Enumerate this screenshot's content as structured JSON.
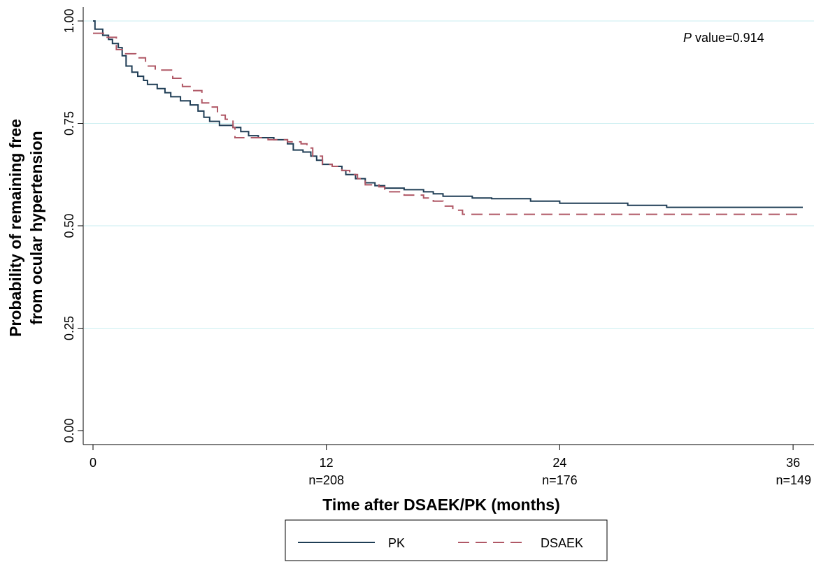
{
  "chart_data": {
    "type": "line",
    "title": "",
    "xlabel": "Time after DSAEK/PK (months)",
    "ylabel_line1": "Probability of remaining free",
    "ylabel_line2": "from ocular hypertension",
    "xlim": [
      0,
      36.5
    ],
    "ylim": [
      0,
      1
    ],
    "x_ticks": [
      0,
      12,
      24,
      36
    ],
    "x_tick_labels": [
      "0",
      "12",
      "24",
      "36"
    ],
    "at_risk_labels": [
      "",
      "n=208",
      "n=176",
      "n=149"
    ],
    "y_ticks": [
      0,
      0.25,
      0.5,
      0.75,
      1.0
    ],
    "y_tick_labels": [
      "0.00",
      "0.25",
      "0.50",
      "0.75",
      "1.00"
    ],
    "grid": "horizontal",
    "annotation": {
      "italic": "P",
      "rest": " value=0.914"
    },
    "legend_position": "bottom",
    "series": [
      {
        "name": "PK",
        "color": "#1f3d55",
        "dash": "solid",
        "points": [
          [
            0,
            1.0
          ],
          [
            0.1,
            0.98
          ],
          [
            0.5,
            0.965
          ],
          [
            0.8,
            0.955
          ],
          [
            1.0,
            0.945
          ],
          [
            1.3,
            0.935
          ],
          [
            1.5,
            0.915
          ],
          [
            1.7,
            0.89
          ],
          [
            2.0,
            0.875
          ],
          [
            2.3,
            0.865
          ],
          [
            2.6,
            0.855
          ],
          [
            2.8,
            0.845
          ],
          [
            3.3,
            0.835
          ],
          [
            3.7,
            0.825
          ],
          [
            4.0,
            0.815
          ],
          [
            4.5,
            0.805
          ],
          [
            5.0,
            0.795
          ],
          [
            5.4,
            0.78
          ],
          [
            5.7,
            0.765
          ],
          [
            6.0,
            0.755
          ],
          [
            6.5,
            0.745
          ],
          [
            7.2,
            0.74
          ],
          [
            7.6,
            0.73
          ],
          [
            8.0,
            0.72
          ],
          [
            8.5,
            0.715
          ],
          [
            9.3,
            0.71
          ],
          [
            10.0,
            0.7
          ],
          [
            10.3,
            0.685
          ],
          [
            10.8,
            0.68
          ],
          [
            11.2,
            0.67
          ],
          [
            11.5,
            0.66
          ],
          [
            11.8,
            0.65
          ],
          [
            12.3,
            0.645
          ],
          [
            12.8,
            0.635
          ],
          [
            13.0,
            0.625
          ],
          [
            13.5,
            0.615
          ],
          [
            14.0,
            0.605
          ],
          [
            14.5,
            0.598
          ],
          [
            15.0,
            0.592
          ],
          [
            16.0,
            0.588
          ],
          [
            17.0,
            0.583
          ],
          [
            17.5,
            0.578
          ],
          [
            18.0,
            0.572
          ],
          [
            19.5,
            0.568
          ],
          [
            20.5,
            0.566
          ],
          [
            22.5,
            0.56
          ],
          [
            24.0,
            0.555
          ],
          [
            27.5,
            0.55
          ],
          [
            29.5,
            0.545
          ],
          [
            36.5,
            0.545
          ]
        ]
      },
      {
        "name": "DSAEK",
        "color": "#b05866",
        "dash": "dashed",
        "points": [
          [
            0,
            0.97
          ],
          [
            0.6,
            0.96
          ],
          [
            1.2,
            0.93
          ],
          [
            1.5,
            0.92
          ],
          [
            2.2,
            0.91
          ],
          [
            2.7,
            0.89
          ],
          [
            3.2,
            0.88
          ],
          [
            4.1,
            0.86
          ],
          [
            4.6,
            0.84
          ],
          [
            5.1,
            0.83
          ],
          [
            5.6,
            0.8
          ],
          [
            6.0,
            0.79
          ],
          [
            6.4,
            0.77
          ],
          [
            6.8,
            0.76
          ],
          [
            7.2,
            0.74
          ],
          [
            7.3,
            0.715
          ],
          [
            8.8,
            0.715
          ],
          [
            9.0,
            0.71
          ],
          [
            10.0,
            0.705
          ],
          [
            10.7,
            0.7
          ],
          [
            11.0,
            0.69
          ],
          [
            11.3,
            0.67
          ],
          [
            11.8,
            0.65
          ],
          [
            12.3,
            0.645
          ],
          [
            12.8,
            0.635
          ],
          [
            13.2,
            0.625
          ],
          [
            13.6,
            0.615
          ],
          [
            14.0,
            0.6
          ],
          [
            14.7,
            0.595
          ],
          [
            15.0,
            0.583
          ],
          [
            16.0,
            0.575
          ],
          [
            17.0,
            0.568
          ],
          [
            17.5,
            0.56
          ],
          [
            18.0,
            0.548
          ],
          [
            18.5,
            0.538
          ],
          [
            19.0,
            0.528
          ],
          [
            36.5,
            0.528
          ]
        ]
      }
    ]
  }
}
